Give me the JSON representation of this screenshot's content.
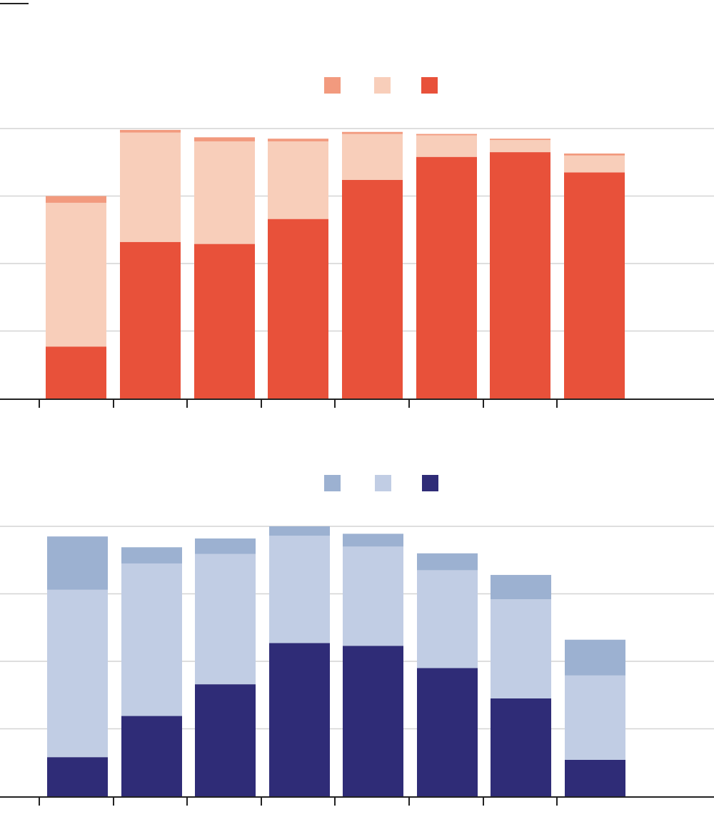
{
  "chart_data": [
    {
      "type": "bar",
      "stacked": true,
      "categories": [
        "",
        "",
        "",
        "",
        "",
        "",
        "",
        ""
      ],
      "ylim": [
        0,
        4
      ],
      "yticks": [
        0,
        1,
        2,
        3,
        4
      ],
      "grid": true,
      "legend_placement": "top-center",
      "series": [
        {
          "color": "#e8513a",
          "values": [
            0.77,
            2.32,
            2.29,
            2.66,
            3.24,
            3.58,
            3.65,
            3.35
          ]
        },
        {
          "color": "#f8ceba",
          "values": [
            2.13,
            1.62,
            1.52,
            1.15,
            0.68,
            0.32,
            0.18,
            0.25
          ]
        },
        {
          "color": "#f29a7e",
          "values": [
            0.1,
            0.04,
            0.06,
            0.04,
            0.03,
            0.02,
            0.02,
            0.03
          ]
        }
      ]
    },
    {
      "type": "bar",
      "stacked": true,
      "categories": [
        "",
        "",
        "",
        "",
        "",
        "",
        "",
        ""
      ],
      "ylim": [
        0,
        4
      ],
      "yticks": [
        0,
        1,
        2,
        3,
        4
      ],
      "grid": true,
      "legend_placement": "top-center",
      "series": [
        {
          "color": "#2f2c77",
          "values": [
            0.58,
            1.19,
            1.66,
            2.27,
            2.23,
            1.9,
            1.45,
            0.54
          ]
        },
        {
          "color": "#c1cde4",
          "values": [
            2.48,
            2.26,
            1.93,
            1.59,
            1.47,
            1.45,
            1.47,
            1.25
          ]
        },
        {
          "color": "#9cb1d1",
          "values": [
            0.79,
            0.24,
            0.23,
            0.14,
            0.19,
            0.25,
            0.36,
            0.53
          ]
        }
      ]
    }
  ]
}
